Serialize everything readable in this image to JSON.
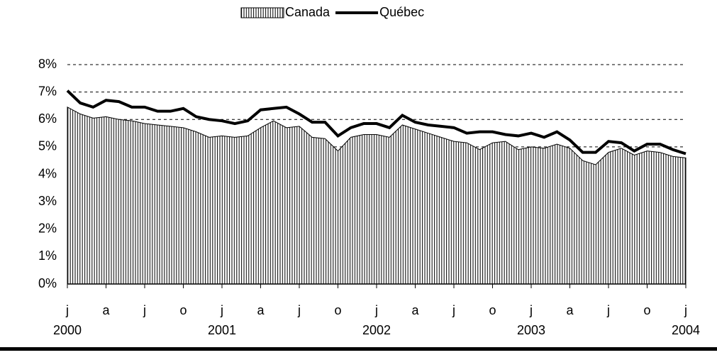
{
  "chart_data": {
    "type": "area_line",
    "categories": [
      "j",
      null,
      null,
      "a",
      null,
      null,
      "j",
      null,
      null,
      "o",
      null,
      null,
      "j",
      null,
      null,
      "a",
      null,
      null,
      "j",
      null,
      null,
      "o",
      null,
      null,
      "j",
      null,
      null,
      "a",
      null,
      null,
      "j",
      null,
      null,
      "o",
      null,
      null,
      "j",
      null,
      null,
      "a",
      null,
      null,
      "j",
      null,
      null,
      "o",
      null,
      null,
      "j"
    ],
    "years": [
      "2000",
      null,
      null,
      null,
      null,
      null,
      null,
      null,
      null,
      null,
      null,
      null,
      "2001",
      null,
      null,
      null,
      null,
      null,
      null,
      null,
      null,
      null,
      null,
      null,
      "2002",
      null,
      null,
      null,
      null,
      null,
      null,
      null,
      null,
      null,
      null,
      null,
      "2003",
      null,
      null,
      null,
      null,
      null,
      null,
      null,
      null,
      null,
      null,
      null,
      "2004"
    ],
    "series": [
      {
        "name": "Canada",
        "kind": "area",
        "color": "#000000",
        "values": [
          6.45,
          6.2,
          6.05,
          6.1,
          6.0,
          5.95,
          5.85,
          5.8,
          5.75,
          5.7,
          5.55,
          5.35,
          5.4,
          5.35,
          5.4,
          5.7,
          5.95,
          5.7,
          5.75,
          5.35,
          5.3,
          4.85,
          5.35,
          5.45,
          5.45,
          5.35,
          5.8,
          5.65,
          5.5,
          5.35,
          5.2,
          5.15,
          4.9,
          5.15,
          5.2,
          4.9,
          5.0,
          4.95,
          5.1,
          4.95,
          4.5,
          4.35,
          4.8,
          4.95,
          4.7,
          4.85,
          4.8,
          4.65,
          4.6
        ]
      },
      {
        "name": "Québec",
        "kind": "line",
        "color": "#000000",
        "values": [
          7.05,
          6.6,
          6.45,
          6.7,
          6.65,
          6.45,
          6.45,
          6.3,
          6.3,
          6.4,
          6.1,
          6.0,
          5.95,
          5.85,
          5.95,
          6.35,
          6.4,
          6.45,
          6.2,
          5.9,
          5.9,
          5.4,
          5.7,
          5.85,
          5.85,
          5.7,
          6.15,
          5.9,
          5.8,
          5.75,
          5.7,
          5.5,
          5.55,
          5.55,
          5.45,
          5.4,
          5.5,
          5.35,
          5.55,
          5.25,
          4.8,
          4.8,
          5.2,
          5.15,
          4.85,
          5.1,
          5.1,
          4.9,
          4.75
        ]
      }
    ],
    "ylim": [
      0,
      8
    ],
    "yticks": [
      {
        "value": 0,
        "label": "0%"
      },
      {
        "value": 1,
        "label": "1%"
      },
      {
        "value": 2,
        "label": "2%"
      },
      {
        "value": 3,
        "label": "3%"
      },
      {
        "value": 4,
        "label": "4%"
      },
      {
        "value": 5,
        "label": "5%"
      },
      {
        "value": 6,
        "label": "6%"
      },
      {
        "value": 7,
        "label": "7%"
      },
      {
        "value": 8,
        "label": "8%"
      }
    ],
    "grid": true,
    "legend": "top"
  }
}
